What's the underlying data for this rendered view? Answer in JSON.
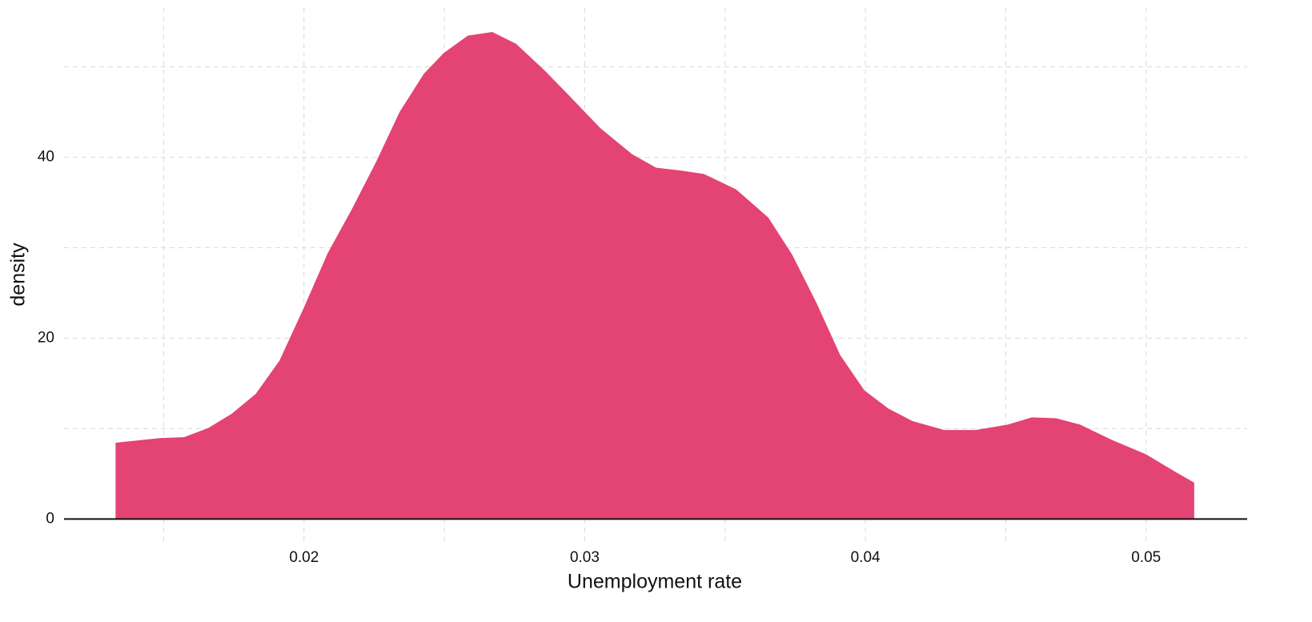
{
  "chart_data": {
    "type": "area",
    "x_label": "Unemployment rate",
    "y_label": "density",
    "color": "#e34473",
    "x": [
      0.0133,
      0.01487,
      0.01572,
      0.01658,
      0.01743,
      0.01829,
      0.01914,
      0.02,
      0.02086,
      0.02171,
      0.02257,
      0.02342,
      0.02428,
      0.02499,
      0.02584,
      0.0267,
      0.02755,
      0.02855,
      0.0294,
      0.03054,
      0.03168,
      0.03254,
      0.03339,
      0.03425,
      0.03539,
      0.03653,
      0.03738,
      0.03824,
      0.03909,
      0.03995,
      0.0408,
      0.04166,
      0.0428,
      0.04394,
      0.04508,
      0.04593,
      0.04679,
      0.04764,
      0.04878,
      0.05,
      0.05108,
      0.0517
    ],
    "values": [
      8.4,
      8.9,
      9.0,
      10.0,
      11.6,
      13.8,
      17.5,
      23.3,
      29.4,
      34.2,
      39.4,
      45.0,
      49.2,
      51.5,
      53.4,
      53.8,
      52.5,
      49.6,
      46.9,
      43.2,
      40.3,
      38.8,
      38.5,
      38.1,
      36.4,
      33.3,
      29.2,
      23.9,
      18.1,
      14.2,
      12.2,
      10.8,
      9.8,
      9.8,
      10.4,
      11.2,
      11.1,
      10.4,
      8.7,
      7.1,
      5.1,
      4.0
    ],
    "xlim": [
      0.01145,
      0.0536
    ],
    "ylim": [
      -2.8,
      56.5
    ],
    "xticks": [
      0.02,
      0.03,
      0.04,
      0.05
    ],
    "yticks": [
      0,
      20,
      40
    ],
    "xminor": [
      0.015,
      0.025,
      0.035,
      0.045
    ],
    "yminor": [
      10,
      30,
      50
    ],
    "grid": true
  }
}
